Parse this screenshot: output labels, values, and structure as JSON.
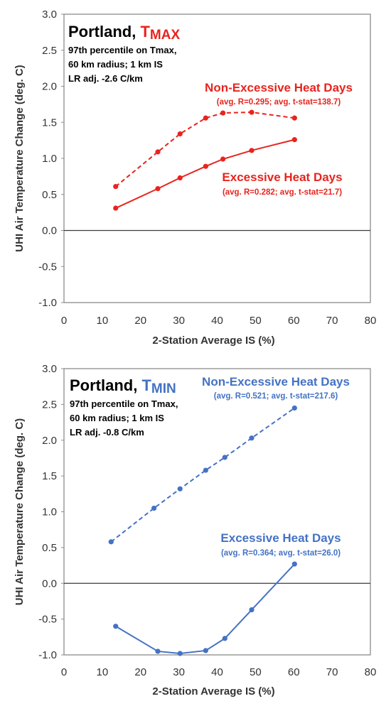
{
  "chart_data": [
    {
      "type": "line",
      "color": "#e8241e",
      "title": "Portland, ",
      "title_var": "T",
      "title_sub": "MAX",
      "info": [
        "97th percentile on Tmax,",
        "60 km radius; 1 km IS",
        "LR adj. -2.6 C/km"
      ],
      "xlabel": "2-Station Average IS (%)",
      "ylabel": "UHI Air Temperature Change (deg. C)",
      "xlim": [
        0,
        80
      ],
      "ylim": [
        -1.0,
        3.0
      ],
      "x_ticks": [
        "0",
        "10",
        "20",
        "30",
        "40",
        "50",
        "60",
        "70",
        "80"
      ],
      "y_ticks": [
        "3.0",
        "2.5",
        "2.0",
        "1.5",
        "1.0",
        "0.5",
        "0.0",
        "-0.5",
        "-1.0"
      ],
      "grid": false,
      "series": [
        {
          "name": "Non-Excessive Heat Days",
          "stat": "(avg. R=0.295; avg. t-stat=138.7)",
          "style": "dashed",
          "x": [
            13.5,
            24.5,
            30.3,
            37,
            41.5,
            49,
            60.2
          ],
          "y": [
            0.61,
            1.09,
            1.34,
            1.56,
            1.63,
            1.64,
            1.56
          ]
        },
        {
          "name": "Excessive Heat Days",
          "stat": "(avg. R=0.282; avg. t-stat=21.7)",
          "style": "solid",
          "x": [
            13.5,
            24.5,
            30.3,
            37,
            41.5,
            49,
            60.2
          ],
          "y": [
            0.31,
            0.58,
            0.73,
            0.89,
            0.99,
            1.11,
            1.26
          ]
        }
      ]
    },
    {
      "type": "line",
      "color": "#4472c4",
      "title": "Portland, ",
      "title_var": "T",
      "title_sub": "MIN",
      "info": [
        "97th percentile on Tmax,",
        "60 km radius; 1 km IS",
        "LR adj. -0.8 C/km"
      ],
      "xlabel": "2-Station Average IS (%)",
      "ylabel": "UHI Air Temperature Change (deg. C)",
      "xlim": [
        0,
        80
      ],
      "ylim": [
        -1.0,
        3.0
      ],
      "x_ticks": [
        "0",
        "10",
        "20",
        "30",
        "40",
        "50",
        "60",
        "70",
        "80"
      ],
      "y_ticks": [
        "3.0",
        "2.5",
        "2.0",
        "1.5",
        "1.0",
        "0.5",
        "0.0",
        "-0.5",
        "-1.0"
      ],
      "grid": false,
      "series": [
        {
          "name": "Non-Excessive Heat Days",
          "stat": "(avg. R=0.521; avg. t-stat=217.6)",
          "style": "dashed",
          "x": [
            12.3,
            23.5,
            30.3,
            37,
            42,
            49,
            60.2
          ],
          "y": [
            0.58,
            1.05,
            1.32,
            1.58,
            1.76,
            2.03,
            2.45
          ]
        },
        {
          "name": "Excessive Heat Days",
          "stat": "(avg. R=0.364; avg. t-stat=26.0)",
          "style": "solid",
          "x": [
            13.5,
            24.5,
            30.3,
            37,
            42,
            49,
            60.2
          ],
          "y": [
            -0.6,
            -0.95,
            -0.98,
            -0.94,
            -0.77,
            -0.37,
            0.27
          ]
        }
      ]
    }
  ]
}
